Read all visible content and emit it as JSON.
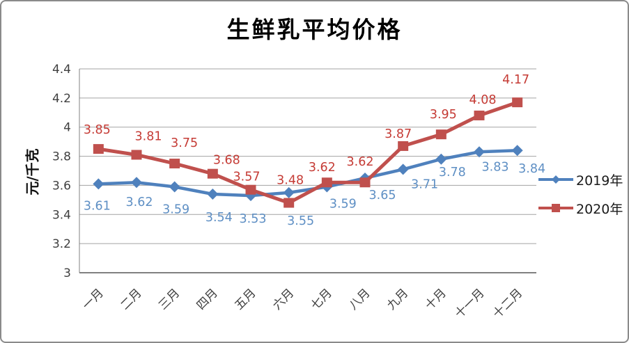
{
  "chart_data": {
    "type": "line",
    "title": "生鲜乳平均价格",
    "ylabel": "元/千克",
    "categories": [
      "一月",
      "二月",
      "三月",
      "四月",
      "五月",
      "六月",
      "七月",
      "八月",
      "九月",
      "十月",
      "十一月",
      "十二月"
    ],
    "yticks": [
      "3",
      "3.2",
      "3.4",
      "3.6",
      "3.8",
      "4",
      "4.2",
      "4.4"
    ],
    "ylim": [
      3,
      4.4
    ],
    "grid": true,
    "legend_position": "right",
    "series": [
      {
        "name": "2019年",
        "marker": "diamond",
        "color": "#4F81BD",
        "label_color": "#5E8FC4",
        "values": [
          3.61,
          3.62,
          3.59,
          3.54,
          3.53,
          3.55,
          3.59,
          3.65,
          3.71,
          3.78,
          3.83,
          3.84
        ],
        "labels": [
          "3.61",
          "3.62",
          "3.59",
          "3.54",
          "3.53",
          "3.55",
          "3.59",
          "3.65",
          "3.71",
          "3.78",
          "3.83",
          "3.84"
        ]
      },
      {
        "name": "2020年",
        "marker": "square",
        "color": "#C0504D",
        "label_color": "#C53B35",
        "values": [
          3.85,
          3.81,
          3.75,
          3.68,
          3.57,
          3.48,
          3.62,
          3.62,
          3.87,
          3.95,
          4.08,
          4.17
        ],
        "labels": [
          "3.85",
          "3.81",
          "3.75",
          "3.68",
          "3.57",
          "3.48",
          "3.62",
          "3.62",
          "3.87",
          "3.95",
          "4.08",
          "4.17"
        ]
      }
    ]
  }
}
